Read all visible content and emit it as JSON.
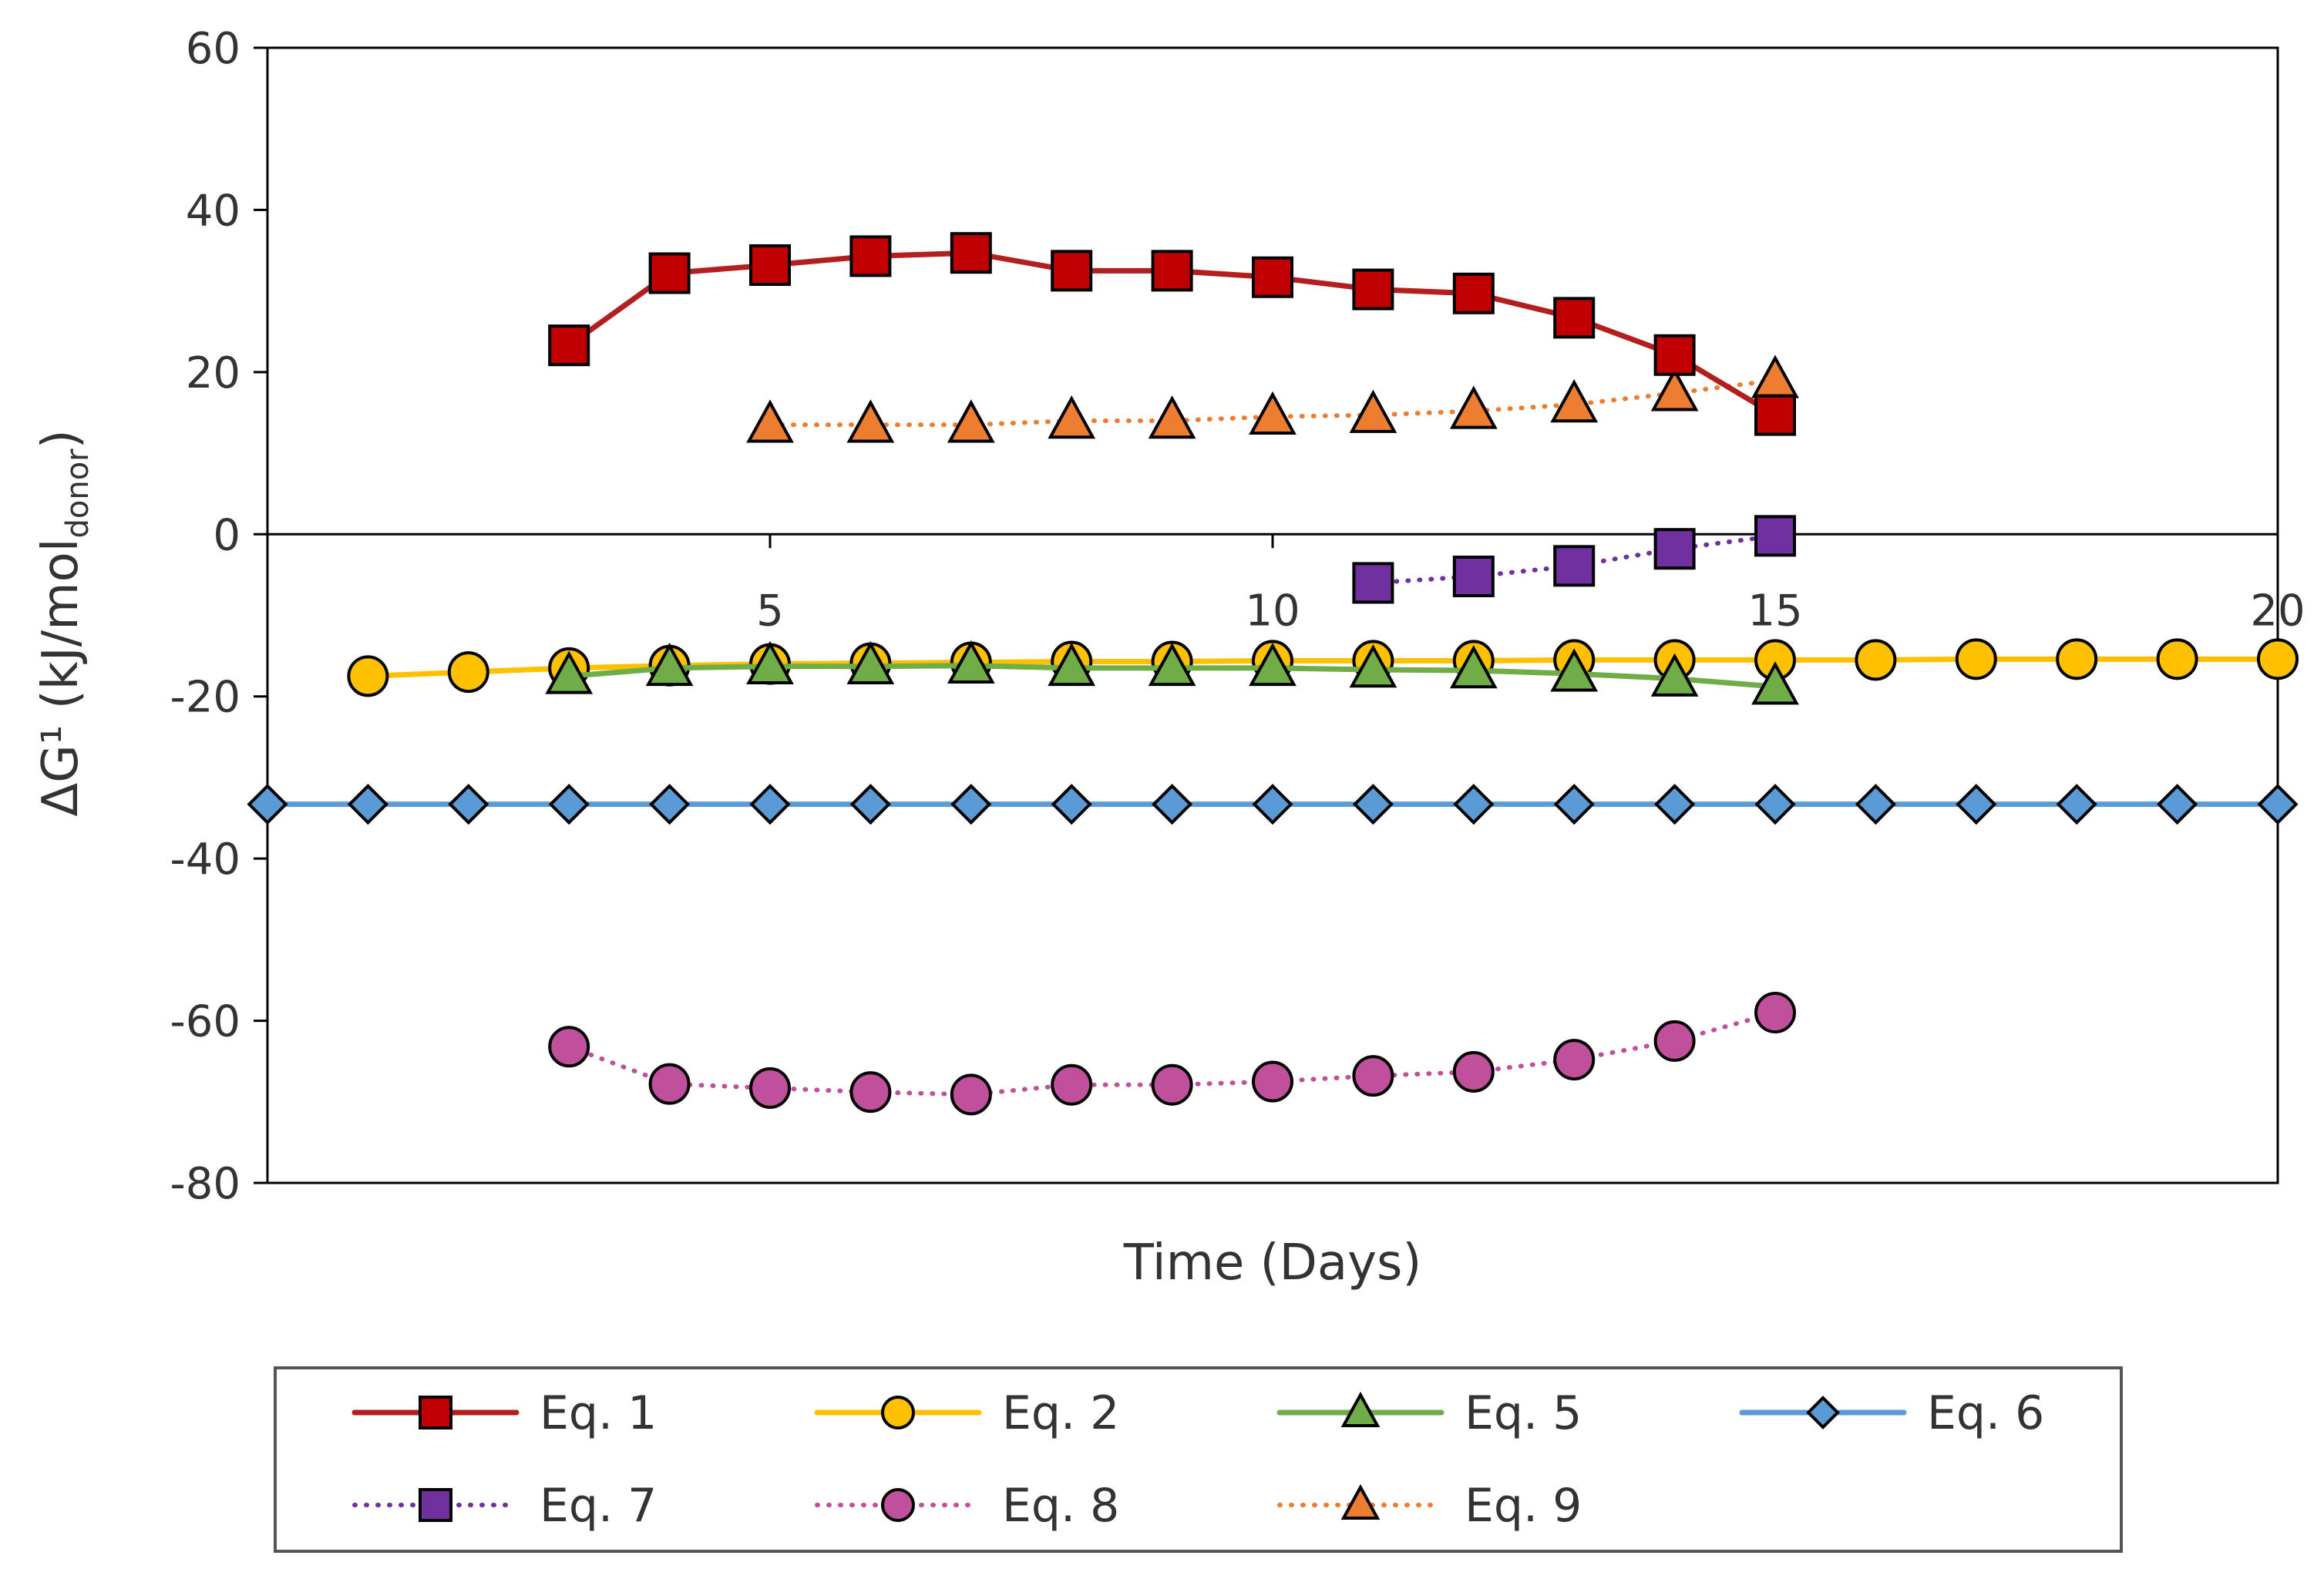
{
  "chart_data": {
    "type": "line",
    "title": "",
    "xlabel": "Time (Days)",
    "ylabel": {
      "main": "ΔG¹ (kJ/mol",
      "subscript": "donor",
      "close": ")"
    },
    "xlim": [
      0,
      20
    ],
    "ylim": [
      -80,
      60
    ],
    "xticks": [
      5,
      10,
      15,
      20
    ],
    "yticks": [
      -80,
      -60,
      -40,
      -20,
      0,
      20,
      40,
      60
    ],
    "grid": false,
    "legend_position": "bottom",
    "series": [
      {
        "name": "Eq. 1",
        "color": "#C00000",
        "line_color": "#B41E1E",
        "style": "solid",
        "marker": "square",
        "x": [
          3,
          4,
          5,
          6,
          7,
          8,
          9,
          10,
          11,
          12,
          13,
          14,
          15
        ],
        "y": [
          23.3,
          32.2,
          33.2,
          34.3,
          34.7,
          32.5,
          32.5,
          31.7,
          30.2,
          29.7,
          26.7,
          22.1,
          14.7
        ]
      },
      {
        "name": "Eq. 2",
        "color": "#FFC000",
        "line_color": "#FFC000",
        "style": "solid",
        "marker": "circle",
        "x": [
          1,
          2,
          3,
          4,
          5,
          6,
          7,
          8,
          9,
          10,
          11,
          12,
          13,
          14,
          15,
          16,
          17,
          18,
          19,
          20
        ],
        "y": [
          -17.5,
          -17.0,
          -16.5,
          -16.2,
          -16.0,
          -15.9,
          -15.8,
          -15.7,
          -15.7,
          -15.6,
          -15.6,
          -15.6,
          -15.5,
          -15.5,
          -15.5,
          -15.5,
          -15.4,
          -15.4,
          -15.4,
          -15.4
        ]
      },
      {
        "name": "Eq. 5",
        "color": "#70AD47",
        "line_color": "#70AD47",
        "style": "solid",
        "marker": "triangle",
        "x": [
          3,
          4,
          5,
          6,
          7,
          8,
          9,
          10,
          11,
          12,
          13,
          14,
          15
        ],
        "y": [
          -17.5,
          -16.5,
          -16.3,
          -16.3,
          -16.2,
          -16.5,
          -16.5,
          -16.5,
          -16.7,
          -16.8,
          -17.2,
          -17.8,
          -18.8
        ]
      },
      {
        "name": "Eq. 6",
        "color": "#5B9BD5",
        "line_color": "#5B9BD5",
        "style": "solid",
        "marker": "diamond",
        "x": [
          0,
          1,
          2,
          3,
          4,
          5,
          6,
          7,
          8,
          9,
          10,
          11,
          12,
          13,
          14,
          15,
          16,
          17,
          18,
          19,
          20
        ],
        "y": [
          -33.3,
          -33.3,
          -33.3,
          -33.3,
          -33.3,
          -33.3,
          -33.3,
          -33.3,
          -33.3,
          -33.3,
          -33.3,
          -33.3,
          -33.3,
          -33.3,
          -33.3,
          -33.3,
          -33.3,
          -33.3,
          -33.3,
          -33.3,
          -33.3
        ]
      },
      {
        "name": "Eq. 7",
        "color": "#7030A0",
        "line_color": "#7030A0",
        "style": "dotted",
        "marker": "square",
        "x": [
          11,
          12,
          13,
          14,
          15
        ],
        "y": [
          -6.0,
          -5.2,
          -3.9,
          -1.8,
          -0.2
        ]
      },
      {
        "name": "Eq. 8",
        "color": "#C0509C",
        "line_color": "#C0509C",
        "style": "dotted",
        "marker": "circle",
        "x": [
          3,
          4,
          5,
          6,
          7,
          8,
          9,
          10,
          11,
          12,
          13,
          14,
          15
        ],
        "y": [
          -63.2,
          -67.8,
          -68.3,
          -68.8,
          -69.1,
          -67.9,
          -67.9,
          -67.5,
          -66.8,
          -66.3,
          -64.8,
          -62.5,
          -59.0
        ]
      },
      {
        "name": "Eq. 9",
        "color": "#ED7D31",
        "line_color": "#ED7D31",
        "style": "dotted",
        "marker": "triangle",
        "x": [
          5,
          6,
          7,
          8,
          9,
          10,
          11,
          12,
          13,
          14,
          15
        ],
        "y": [
          13.5,
          13.5,
          13.5,
          14.0,
          14.0,
          14.5,
          14.7,
          15.2,
          16.0,
          17.4,
          19.0
        ]
      }
    ]
  }
}
